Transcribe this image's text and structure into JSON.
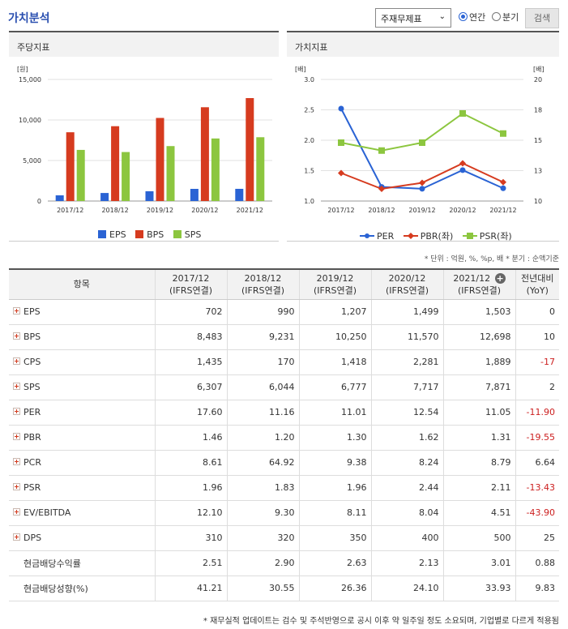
{
  "header": {
    "title": "가치분석",
    "select_value": "주재무제표",
    "radio_annual": "연간",
    "radio_quarter": "분기",
    "search_button": "검색"
  },
  "panels": {
    "left_title": "주당지표",
    "right_title": "가치지표"
  },
  "icons": {
    "select_arrow": "chevron-down-icon",
    "expand": "plus-box-icon",
    "add_column": "plus-circle-icon"
  },
  "colors": {
    "title": "#2a4fb0",
    "EPS": "#2a63d4",
    "BPS": "#d63b1f",
    "SPS": "#8cc63f",
    "PER": "#2a63d4",
    "PBR": "#d63b1f",
    "PSR": "#8cc63f",
    "negative": "#cc1f1f"
  },
  "chart_data": [
    {
      "type": "bar",
      "unit_label": "[원]",
      "categories": [
        "2017/12",
        "2018/12",
        "2019/12",
        "2020/12",
        "2021/12"
      ],
      "yticks": [
        "15,000",
        "10,000",
        "5,000",
        "0"
      ],
      "ylim": [
        0,
        15000
      ],
      "series": [
        {
          "name": "EPS",
          "values": [
            702,
            990,
            1207,
            1499,
            1503
          ]
        },
        {
          "name": "BPS",
          "values": [
            8483,
            9231,
            10250,
            11570,
            12698
          ]
        },
        {
          "name": "SPS",
          "values": [
            6307,
            6044,
            6777,
            7717,
            7871
          ]
        }
      ],
      "legend": "bottom",
      "grid": true
    },
    {
      "type": "line",
      "left_unit_label": "[배]",
      "right_unit_label": "[배]",
      "categories": [
        "2017/12",
        "2018/12",
        "2019/12",
        "2020/12",
        "2021/12"
      ],
      "yticks_left": [
        "3.0",
        "2.5",
        "2.0",
        "1.5",
        "1.0"
      ],
      "yticks_right": [
        "20",
        "18",
        "15",
        "13",
        "10"
      ],
      "ylim_left": [
        1.0,
        3.0
      ],
      "ylim_right": [
        10,
        20
      ],
      "series": [
        {
          "name": "PER",
          "axis": "right",
          "values": [
            17.6,
            11.16,
            11.01,
            12.54,
            11.05
          ]
        },
        {
          "name": "PBR(좌)",
          "axis": "left",
          "values": [
            1.46,
            1.2,
            1.3,
            1.62,
            1.31
          ]
        },
        {
          "name": "PSR(좌)",
          "axis": "left",
          "values": [
            1.96,
            1.83,
            1.96,
            2.44,
            2.11
          ]
        }
      ],
      "legend": "bottom",
      "grid": true
    }
  ],
  "unit_note": "* 단위 : 억원, %, %p, 배   * 분기 : 순액기준",
  "table": {
    "head_item": "항목",
    "columns": [
      {
        "period": "2017/12",
        "basis": "(IFRS연결)"
      },
      {
        "period": "2018/12",
        "basis": "(IFRS연결)"
      },
      {
        "period": "2019/12",
        "basis": "(IFRS연결)"
      },
      {
        "period": "2020/12",
        "basis": "(IFRS연결)"
      },
      {
        "period": "2021/12",
        "basis": "(IFRS연결)"
      }
    ],
    "yoy_head_1": "전년대비",
    "yoy_head_2": "(YoY)",
    "rows": [
      {
        "label": "EPS",
        "expand": true,
        "values": [
          "702",
          "990",
          "1,207",
          "1,499",
          "1,503"
        ],
        "yoy": "0"
      },
      {
        "label": "BPS",
        "expand": true,
        "values": [
          "8,483",
          "9,231",
          "10,250",
          "11,570",
          "12,698"
        ],
        "yoy": "10"
      },
      {
        "label": "CPS",
        "expand": true,
        "values": [
          "1,435",
          "170",
          "1,418",
          "2,281",
          "1,889"
        ],
        "yoy": "-17"
      },
      {
        "label": "SPS",
        "expand": true,
        "values": [
          "6,307",
          "6,044",
          "6,777",
          "7,717",
          "7,871"
        ],
        "yoy": "2"
      },
      {
        "label": "PER",
        "expand": true,
        "values": [
          "17.60",
          "11.16",
          "11.01",
          "12.54",
          "11.05"
        ],
        "yoy": "-11.90"
      },
      {
        "label": "PBR",
        "expand": true,
        "values": [
          "1.46",
          "1.20",
          "1.30",
          "1.62",
          "1.31"
        ],
        "yoy": "-19.55"
      },
      {
        "label": "PCR",
        "expand": true,
        "values": [
          "8.61",
          "64.92",
          "9.38",
          "8.24",
          "8.79"
        ],
        "yoy": "6.64"
      },
      {
        "label": "PSR",
        "expand": true,
        "values": [
          "1.96",
          "1.83",
          "1.96",
          "2.44",
          "2.11"
        ],
        "yoy": "-13.43"
      },
      {
        "label": "EV/EBITDA",
        "expand": true,
        "values": [
          "12.10",
          "9.30",
          "8.11",
          "8.04",
          "4.51"
        ],
        "yoy": "-43.90"
      },
      {
        "label": "DPS",
        "expand": true,
        "values": [
          "310",
          "320",
          "350",
          "400",
          "500"
        ],
        "yoy": "25"
      },
      {
        "label": "현금배당수익률",
        "expand": false,
        "values": [
          "2.51",
          "2.90",
          "2.63",
          "2.13",
          "3.01"
        ],
        "yoy": "0.88"
      },
      {
        "label": "현금배당성향(%)",
        "expand": false,
        "values": [
          "41.21",
          "30.55",
          "26.36",
          "24.10",
          "33.93"
        ],
        "yoy": "9.83"
      }
    ]
  },
  "footnote": "* 재무실적 업데이트는 검수 및 주석반영으로 공시 이후 약 일주일 정도 소요되며, 기업별로 다르게 적용됨"
}
